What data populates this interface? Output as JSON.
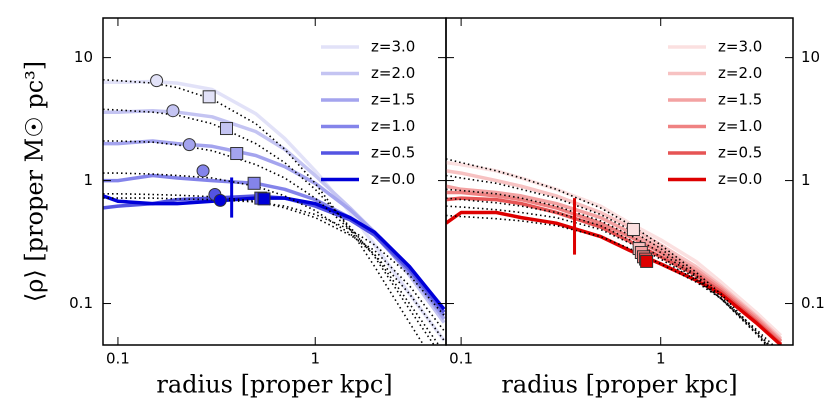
{
  "chart_data": [
    {
      "type": "line",
      "log_x": true,
      "log_y": true,
      "xlabel": "radius  [proper kpc]",
      "ylabel": "⟨ρ⟩  [proper M☉ pc³]",
      "xlim": [
        0.084,
        4.6
      ],
      "ylim": [
        0.046,
        21
      ],
      "xticks": [
        0.1,
        1
      ],
      "yticks": [
        0.1,
        1,
        10
      ],
      "ytick_side": "left",
      "legend": "upper right",
      "x": [
        0.084,
        0.1,
        0.15,
        0.2,
        0.3,
        0.5,
        0.7,
        1,
        1.5,
        2,
        3,
        4.5
      ],
      "series": [
        {
          "name": "z=3.0",
          "color": "#e2e2f8",
          "values": [
            6.3,
            6.3,
            6.4,
            6.2,
            5.5,
            3.5,
            2.2,
            1.2,
            0.55,
            0.3,
            0.12,
            0.05
          ]
        },
        {
          "name": "z=2.0",
          "color": "#c4c4f2",
          "values": [
            3.6,
            3.6,
            3.7,
            3.6,
            3.3,
            2.5,
            1.8,
            1.1,
            0.6,
            0.38,
            0.17,
            0.07
          ]
        },
        {
          "name": "z=1.5",
          "color": "#a4a4ee",
          "values": [
            2.0,
            2.0,
            2.1,
            2.0,
            1.9,
            1.6,
            1.3,
            0.95,
            0.58,
            0.38,
            0.18,
            0.075
          ]
        },
        {
          "name": "z=1.0",
          "color": "#8484ea",
          "values": [
            1.0,
            1.0,
            1.1,
            1.05,
            1.0,
            0.95,
            0.85,
            0.7,
            0.5,
            0.36,
            0.18,
            0.08
          ]
        },
        {
          "name": "z=0.5",
          "color": "#5454e2",
          "values": [
            0.6,
            0.62,
            0.65,
            0.7,
            0.72,
            0.75,
            0.72,
            0.62,
            0.48,
            0.36,
            0.19,
            0.085
          ]
        },
        {
          "name": "z=0.0",
          "color": "#0000d8",
          "values": [
            0.75,
            0.68,
            0.65,
            0.65,
            0.68,
            0.72,
            0.72,
            0.65,
            0.5,
            0.38,
            0.2,
            0.09
          ]
        }
      ],
      "fits": [
        {
          "values": [
            6.6,
            6.5,
            6.2,
            5.7,
            4.6,
            2.9,
            1.8,
            0.95,
            0.4,
            0.2,
            0.07,
            0.025
          ]
        },
        {
          "values": [
            3.8,
            3.75,
            3.6,
            3.4,
            2.9,
            2.0,
            1.4,
            0.85,
            0.42,
            0.24,
            0.09,
            0.035
          ]
        },
        {
          "values": [
            2.1,
            2.1,
            2.05,
            1.95,
            1.75,
            1.35,
            1.05,
            0.72,
            0.4,
            0.25,
            0.1,
            0.04
          ]
        },
        {
          "values": [
            1.15,
            1.15,
            1.13,
            1.1,
            1.05,
            0.9,
            0.75,
            0.57,
            0.37,
            0.25,
            0.12,
            0.05
          ]
        },
        {
          "values": [
            0.78,
            0.78,
            0.77,
            0.76,
            0.74,
            0.68,
            0.6,
            0.5,
            0.36,
            0.27,
            0.14,
            0.06
          ]
        },
        {
          "values": [
            0.72,
            0.72,
            0.72,
            0.71,
            0.7,
            0.67,
            0.62,
            0.53,
            0.4,
            0.3,
            0.17,
            0.08
          ]
        }
      ],
      "circles": {
        "x": [
          0.157,
          0.19,
          0.23,
          0.27,
          0.31,
          0.33
        ],
        "y": [
          6.5,
          3.7,
          1.96,
          1.2,
          0.77,
          0.69
        ]
      },
      "squares": {
        "x": [
          0.29,
          0.355,
          0.4,
          0.49,
          0.53,
          0.55
        ],
        "y": [
          4.8,
          2.65,
          1.66,
          0.95,
          0.72,
          0.71
        ]
      },
      "vline": {
        "x": 0.377,
        "y": [
          0.5,
          1.06
        ]
      }
    },
    {
      "type": "line",
      "log_x": true,
      "log_y": true,
      "xlabel": "radius  [proper kpc]",
      "xlim": [
        0.084,
        4.6
      ],
      "ylim": [
        0.046,
        21
      ],
      "xticks": [
        0.1,
        1
      ],
      "yticks": [
        0.1,
        1,
        10
      ],
      "ytick_side": "right",
      "legend": "upper right",
      "x": [
        0.084,
        0.1,
        0.15,
        0.2,
        0.3,
        0.5,
        0.7,
        1,
        1.5,
        2,
        3,
        4
      ],
      "series": [
        {
          "name": "z=3.0",
          "color": "#fbe0e0",
          "values": [
            1.4,
            1.35,
            1.2,
            1.05,
            0.85,
            0.62,
            0.45,
            0.33,
            0.22,
            0.15,
            0.085,
            0.055
          ]
        },
        {
          "name": "z=2.0",
          "color": "#f7c2c2",
          "values": [
            1.2,
            1.15,
            1.0,
            0.9,
            0.75,
            0.55,
            0.42,
            0.3,
            0.2,
            0.14,
            0.08,
            0.052
          ]
        },
        {
          "name": "z=1.5",
          "color": "#f3a2a2",
          "values": [
            0.9,
            0.85,
            0.8,
            0.75,
            0.65,
            0.5,
            0.38,
            0.28,
            0.19,
            0.135,
            0.078,
            0.05
          ]
        },
        {
          "name": "z=1.0",
          "color": "#ef8282",
          "values": [
            0.8,
            0.8,
            0.75,
            0.7,
            0.6,
            0.45,
            0.35,
            0.26,
            0.18,
            0.13,
            0.075,
            0.049
          ]
        },
        {
          "name": "z=0.5",
          "color": "#e65454",
          "values": [
            0.7,
            0.72,
            0.7,
            0.65,
            0.55,
            0.42,
            0.32,
            0.24,
            0.17,
            0.125,
            0.072,
            0.047
          ]
        },
        {
          "name": "z=0.0",
          "color": "#dd0000",
          "values": [
            0.45,
            0.55,
            0.55,
            0.5,
            0.45,
            0.35,
            0.27,
            0.21,
            0.155,
            0.12,
            0.07,
            0.046
          ]
        }
      ],
      "fits": [
        {
          "values": [
            1.5,
            1.4,
            1.2,
            1.05,
            0.85,
            0.6,
            0.44,
            0.3,
            0.18,
            0.12,
            0.06,
            0.035
          ]
        },
        {
          "values": [
            1.1,
            1.05,
            0.95,
            0.85,
            0.72,
            0.53,
            0.4,
            0.28,
            0.17,
            0.115,
            0.058,
            0.034
          ]
        },
        {
          "values": [
            0.85,
            0.83,
            0.78,
            0.72,
            0.62,
            0.47,
            0.36,
            0.26,
            0.165,
            0.11,
            0.057,
            0.033
          ]
        },
        {
          "values": [
            0.72,
            0.7,
            0.66,
            0.62,
            0.55,
            0.43,
            0.33,
            0.24,
            0.16,
            0.11,
            0.058,
            0.035
          ]
        },
        {
          "values": [
            0.62,
            0.61,
            0.58,
            0.55,
            0.5,
            0.4,
            0.31,
            0.23,
            0.155,
            0.11,
            0.06,
            0.037
          ]
        },
        {
          "values": [
            0.52,
            0.51,
            0.49,
            0.47,
            0.43,
            0.35,
            0.28,
            0.21,
            0.15,
            0.11,
            0.062,
            0.04
          ]
        }
      ],
      "squares": {
        "x": [
          0.73,
          0.78,
          0.8,
          0.82,
          0.84,
          0.85
        ],
        "y": [
          0.4,
          0.28,
          0.26,
          0.24,
          0.23,
          0.22
        ]
      },
      "vline": {
        "x": 0.37,
        "y": [
          0.25,
          0.72
        ]
      }
    }
  ]
}
